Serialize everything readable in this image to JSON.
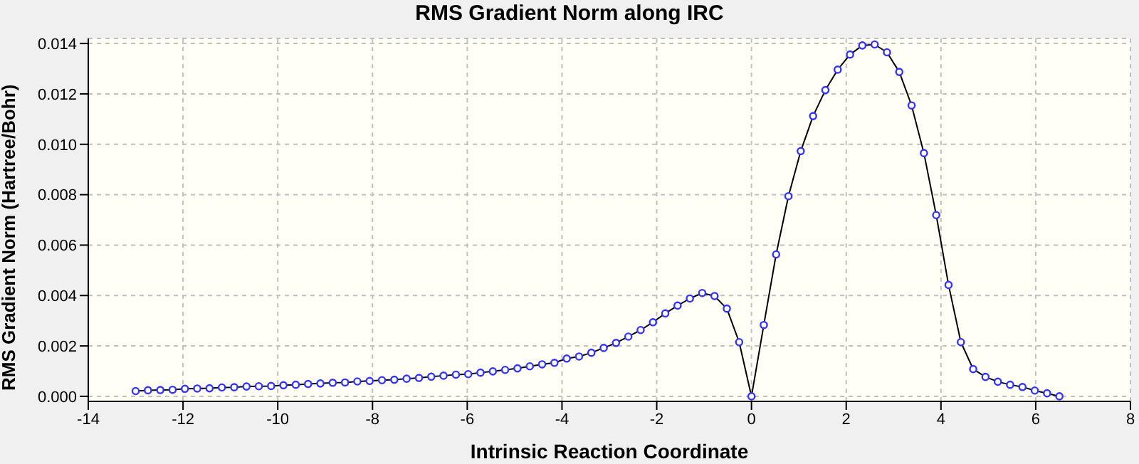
{
  "chart_data": {
    "type": "line",
    "title": "RMS Gradient Norm along IRC",
    "xlabel": "Intrinsic Reaction Coordinate",
    "ylabel": "RMS Gradient Norm (Hartree/Bohr)",
    "x": [
      -13,
      -12.74,
      -12.48,
      -12.22,
      -11.96,
      -11.7,
      -11.44,
      -11.18,
      -10.92,
      -10.66,
      -10.4,
      -10.14,
      -9.88,
      -9.62,
      -9.36,
      -9.1,
      -8.84,
      -8.58,
      -8.32,
      -8.06,
      -7.8,
      -7.54,
      -7.28,
      -7.02,
      -6.76,
      -6.5,
      -6.24,
      -5.98,
      -5.72,
      -5.46,
      -5.2,
      -4.94,
      -4.68,
      -4.42,
      -4.16,
      -3.9,
      -3.64,
      -3.38,
      -3.12,
      -2.86,
      -2.6,
      -2.34,
      -2.08,
      -1.82,
      -1.56,
      -1.3,
      -1.04,
      -0.78,
      -0.52,
      -0.26,
      0,
      0.26,
      0.52,
      0.78,
      1.04,
      1.3,
      1.56,
      1.82,
      2.08,
      2.34,
      2.6,
      2.86,
      3.12,
      3.38,
      3.64,
      3.9,
      4.16,
      4.42,
      4.68,
      4.94,
      5.2,
      5.46,
      5.72,
      5.98,
      6.24,
      6.5
    ],
    "series": [
      {
        "color": "#3333ff",
        "values": [
          0.00021,
          0.00024,
          0.00025,
          0.00026,
          0.0003,
          0.00031,
          0.00032,
          0.00035,
          0.00036,
          0.00039,
          0.0004,
          0.00041,
          0.00044,
          0.00046,
          0.00049,
          0.00051,
          0.00054,
          0.00055,
          0.00059,
          0.00061,
          0.00064,
          0.00066,
          0.0007,
          0.00073,
          0.00078,
          0.00082,
          0.00086,
          0.00088,
          0.00094,
          0.00099,
          0.00105,
          0.00111,
          0.00119,
          0.00127,
          0.00133,
          0.0015,
          0.00158,
          0.00173,
          0.00192,
          0.00212,
          0.00237,
          0.00263,
          0.00294,
          0.00329,
          0.0036,
          0.00388,
          0.0041,
          0.00398,
          0.00348,
          0.00215,
          0,
          0.00283,
          0.00563,
          0.00794,
          0.00973,
          0.01112,
          0.01215,
          0.01296,
          0.01356,
          0.01392,
          0.01396,
          0.01365,
          0.01287,
          0.01154,
          0.00965,
          0.00719,
          0.00442,
          0.00215,
          0.00108,
          0.00077,
          0.00058,
          0.00046,
          0.00037,
          0.00023,
          0.00012,
          0
        ]
      }
    ],
    "xlim": [
      -14,
      8
    ],
    "xticks": [
      -14,
      -12,
      -10,
      -8,
      -6,
      -4,
      -2,
      0,
      2,
      4,
      6,
      8
    ],
    "ylim": [
      -0.0002,
      0.0142
    ],
    "yticks": [
      {
        "value": 0,
        "label": "0.000"
      },
      {
        "value": 0.002,
        "label": "0.002"
      },
      {
        "value": 0.004,
        "label": "0.004"
      },
      {
        "value": 0.006,
        "label": "0.006"
      },
      {
        "value": 0.008,
        "label": "0.008"
      },
      {
        "value": 0.01,
        "label": "0.010"
      },
      {
        "value": 0.012,
        "label": "0.012"
      },
      {
        "value": 0.014,
        "label": "0.014"
      }
    ],
    "grid": true,
    "legend": false,
    "marker": "circle",
    "line_style": "solid"
  }
}
